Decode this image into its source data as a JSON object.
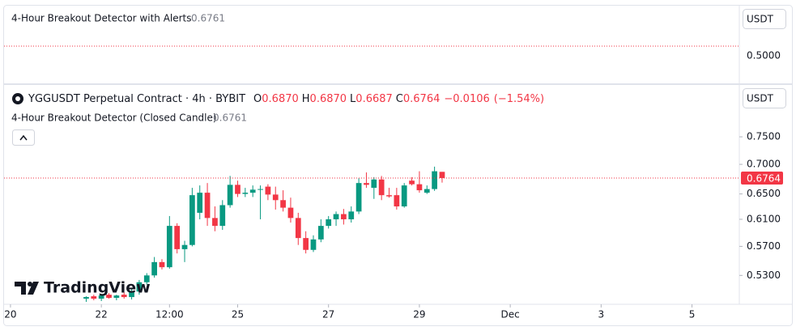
{
  "top_pane": {
    "indicator": "4-Hour Breakout Detector with Alerts",
    "indicator_value": "0.6761",
    "currency": "USDT",
    "yticks": [
      {
        "value": 0.5,
        "label": "0.5000"
      }
    ]
  },
  "chart_data": {
    "type": "candlestick",
    "title": "YGGUSDT Perpetual Contract · 4h · BYBIT",
    "header": {
      "o_label": "O",
      "open": "0.6870",
      "h_label": "H",
      "high": "0.6870",
      "l_label": "L",
      "low": "0.6687",
      "c_label": "C",
      "close": "0.6764",
      "change": "−0.0106",
      "change_pct": "(−1.54%)"
    },
    "indicator": "4-Hour Breakout Detector (Closed Candle)",
    "indicator_value": "0.6761",
    "currency": "USDT",
    "watermark": "TradingView",
    "colors": {
      "up": "#089981",
      "down": "#f23645"
    },
    "log_scale": true,
    "x": [
      40,
      44,
      48,
      52,
      56,
      60,
      64,
      68,
      72,
      76,
      80,
      84,
      88,
      92,
      96,
      100,
      104,
      108,
      112,
      116,
      120,
      124,
      128,
      132,
      136,
      140,
      144,
      148,
      152,
      156,
      160,
      164,
      168,
      172,
      176,
      180,
      184,
      188,
      192,
      196,
      200,
      204,
      208,
      212,
      216,
      220,
      224,
      228
    ],
    "open": [
      0.5,
      0.503,
      0.5,
      0.505,
      0.501,
      0.505,
      0.502,
      0.509,
      0.521,
      0.53,
      0.548,
      0.541,
      0.6,
      0.566,
      0.572,
      0.62,
      0.652,
      0.612,
      0.6,
      0.632,
      0.665,
      0.65,
      0.652,
      0.657,
      0.662,
      0.649,
      0.64,
      0.628,
      0.612,
      0.582,
      0.565,
      0.58,
      0.6,
      0.61,
      0.618,
      0.61,
      0.622,
      0.668,
      0.66,
      0.674,
      0.648,
      0.648,
      0.63,
      0.672,
      0.666,
      0.652,
      0.658,
      0.687
    ],
    "high": [
      0.503,
      0.505,
      0.506,
      0.507,
      0.505,
      0.508,
      0.512,
      0.524,
      0.533,
      0.555,
      0.552,
      0.615,
      0.604,
      0.578,
      0.66,
      0.664,
      0.668,
      0.63,
      0.64,
      0.68,
      0.672,
      0.66,
      0.664,
      0.664,
      0.666,
      0.662,
      0.656,
      0.644,
      0.62,
      0.592,
      0.586,
      0.61,
      0.615,
      0.622,
      0.626,
      0.63,
      0.676,
      0.686,
      0.678,
      0.68,
      0.66,
      0.66,
      0.668,
      0.678,
      0.688,
      0.664,
      0.696,
      0.687
    ],
    "low": [
      0.496,
      0.498,
      0.497,
      0.5,
      0.498,
      0.5,
      0.499,
      0.505,
      0.518,
      0.527,
      0.538,
      0.539,
      0.56,
      0.548,
      0.57,
      0.61,
      0.6,
      0.592,
      0.594,
      0.628,
      0.645,
      0.645,
      0.645,
      0.61,
      0.64,
      0.625,
      0.622,
      0.605,
      0.572,
      0.56,
      0.562,
      0.576,
      0.596,
      0.6,
      0.602,
      0.605,
      0.618,
      0.66,
      0.642,
      0.64,
      0.644,
      0.625,
      0.628,
      0.664,
      0.652,
      0.65,
      0.655,
      0.6687
    ],
    "close": [
      0.502,
      0.5,
      0.504,
      0.501,
      0.504,
      0.502,
      0.509,
      0.521,
      0.53,
      0.548,
      0.541,
      0.6,
      0.566,
      0.572,
      0.648,
      0.652,
      0.612,
      0.6,
      0.632,
      0.665,
      0.65,
      0.652,
      0.657,
      0.658,
      0.649,
      0.64,
      0.628,
      0.612,
      0.582,
      0.565,
      0.58,
      0.6,
      0.61,
      0.618,
      0.61,
      0.622,
      0.668,
      0.665,
      0.674,
      0.648,
      0.646,
      0.63,
      0.664,
      0.666,
      0.656,
      0.658,
      0.688,
      0.6764
    ],
    "xlim": [
      -3.4,
      385
    ],
    "xticks": [
      {
        "value": 0,
        "label": "20"
      },
      {
        "value": 48,
        "label": "22"
      },
      {
        "value": 84,
        "label": "12:00"
      },
      {
        "value": 120,
        "label": "25"
      },
      {
        "value": 168,
        "label": "27"
      },
      {
        "value": 216,
        "label": "29"
      },
      {
        "value": 264,
        "label": "Dec"
      },
      {
        "value": 312,
        "label": "3"
      },
      {
        "value": 360,
        "label": "5"
      }
    ],
    "ylim": [
      0.494,
      0.854
    ],
    "yticks": [
      {
        "value": 0.53,
        "label": "0.5300"
      },
      {
        "value": 0.57,
        "label": "0.5700"
      },
      {
        "value": 0.61,
        "label": "0.6100"
      },
      {
        "value": 0.65,
        "label": "0.6500"
      },
      {
        "value": 0.7,
        "label": "0.7000"
      },
      {
        "value": 0.75,
        "label": "0.7500"
      }
    ]
  }
}
